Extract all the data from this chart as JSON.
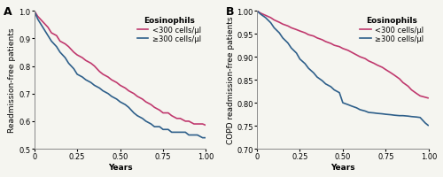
{
  "panel_A": {
    "label": "A",
    "ylabel": "Readmission-free patients",
    "xlabel": "Years",
    "ylim": [
      0.5,
      1.0
    ],
    "xlim": [
      0.0,
      1.0
    ],
    "yticks": [
      0.5,
      0.6,
      0.7,
      0.8,
      0.9,
      1.0
    ],
    "xticks": [
      0,
      0.25,
      0.5,
      0.75,
      1.0
    ],
    "legend_title": "Eosinophils",
    "legend_entries": [
      "<300 cells/µl",
      "≥300 cells/µl"
    ],
    "color_low": "#c0396e",
    "color_high": "#2e5f8a",
    "low_x": [
      0.0,
      0.02,
      0.05,
      0.08,
      0.1,
      0.13,
      0.15,
      0.18,
      0.2,
      0.23,
      0.25,
      0.28,
      0.3,
      0.33,
      0.35,
      0.38,
      0.4,
      0.43,
      0.45,
      0.48,
      0.5,
      0.53,
      0.55,
      0.58,
      0.6,
      0.63,
      0.65,
      0.68,
      0.7,
      0.73,
      0.75,
      0.78,
      0.8,
      0.83,
      0.85,
      0.88,
      0.9,
      0.93,
      0.95,
      0.98,
      1.0
    ],
    "low_y": [
      1.0,
      0.98,
      0.96,
      0.94,
      0.92,
      0.91,
      0.89,
      0.88,
      0.87,
      0.85,
      0.84,
      0.83,
      0.82,
      0.81,
      0.8,
      0.78,
      0.77,
      0.76,
      0.75,
      0.74,
      0.73,
      0.72,
      0.71,
      0.7,
      0.69,
      0.68,
      0.67,
      0.66,
      0.65,
      0.64,
      0.63,
      0.63,
      0.62,
      0.61,
      0.61,
      0.6,
      0.6,
      0.59,
      0.59,
      0.59,
      0.585
    ],
    "high_x": [
      0.0,
      0.02,
      0.05,
      0.08,
      0.1,
      0.13,
      0.15,
      0.18,
      0.2,
      0.23,
      0.25,
      0.28,
      0.3,
      0.33,
      0.35,
      0.38,
      0.4,
      0.43,
      0.45,
      0.48,
      0.5,
      0.53,
      0.55,
      0.58,
      0.6,
      0.63,
      0.65,
      0.68,
      0.7,
      0.73,
      0.75,
      0.78,
      0.8,
      0.83,
      0.85,
      0.88,
      0.9,
      0.93,
      0.95,
      0.98,
      1.0
    ],
    "high_y": [
      1.0,
      0.97,
      0.94,
      0.91,
      0.89,
      0.87,
      0.85,
      0.83,
      0.81,
      0.79,
      0.77,
      0.76,
      0.75,
      0.74,
      0.73,
      0.72,
      0.71,
      0.7,
      0.69,
      0.68,
      0.67,
      0.66,
      0.65,
      0.63,
      0.62,
      0.61,
      0.6,
      0.59,
      0.58,
      0.58,
      0.57,
      0.57,
      0.56,
      0.56,
      0.56,
      0.56,
      0.55,
      0.55,
      0.55,
      0.54,
      0.54
    ]
  },
  "panel_B": {
    "label": "B",
    "ylabel": "COPD readmission-free patients",
    "xlabel": "Years",
    "ylim": [
      0.7,
      1.0
    ],
    "xlim": [
      0.0,
      1.0
    ],
    "yticks": [
      0.7,
      0.75,
      0.8,
      0.85,
      0.9,
      0.95,
      1.0
    ],
    "xticks": [
      0,
      0.25,
      0.5,
      0.75,
      1.0
    ],
    "legend_title": "Eosinophils",
    "legend_entries": [
      "<300 cells/µl",
      "≥300 cells/µl"
    ],
    "color_low": "#c0396e",
    "color_high": "#2e5f8a",
    "low_x": [
      0.0,
      0.02,
      0.05,
      0.08,
      0.1,
      0.13,
      0.15,
      0.18,
      0.2,
      0.23,
      0.25,
      0.28,
      0.3,
      0.33,
      0.35,
      0.38,
      0.4,
      0.43,
      0.45,
      0.48,
      0.5,
      0.53,
      0.55,
      0.58,
      0.6,
      0.63,
      0.65,
      0.68,
      0.7,
      0.73,
      0.75,
      0.78,
      0.8,
      0.83,
      0.85,
      0.88,
      0.9,
      0.93,
      0.95,
      0.98,
      1.0
    ],
    "low_y": [
      1.0,
      0.995,
      0.99,
      0.985,
      0.98,
      0.975,
      0.971,
      0.967,
      0.963,
      0.959,
      0.956,
      0.952,
      0.948,
      0.945,
      0.941,
      0.937,
      0.933,
      0.929,
      0.925,
      0.922,
      0.918,
      0.914,
      0.91,
      0.904,
      0.9,
      0.896,
      0.891,
      0.886,
      0.882,
      0.877,
      0.872,
      0.865,
      0.86,
      0.852,
      0.844,
      0.836,
      0.828,
      0.82,
      0.815,
      0.812,
      0.81
    ],
    "high_x": [
      0.0,
      0.02,
      0.05,
      0.08,
      0.1,
      0.13,
      0.15,
      0.18,
      0.2,
      0.23,
      0.25,
      0.28,
      0.3,
      0.33,
      0.35,
      0.38,
      0.4,
      0.43,
      0.45,
      0.48,
      0.5,
      0.53,
      0.55,
      0.58,
      0.6,
      0.63,
      0.65,
      0.68,
      0.7,
      0.73,
      0.75,
      0.78,
      0.8,
      0.83,
      0.85,
      0.88,
      0.9,
      0.93,
      0.95,
      0.98,
      1.0
    ],
    "high_y": [
      1.0,
      0.993,
      0.985,
      0.974,
      0.963,
      0.952,
      0.941,
      0.93,
      0.919,
      0.908,
      0.895,
      0.885,
      0.875,
      0.865,
      0.856,
      0.848,
      0.841,
      0.835,
      0.828,
      0.822,
      0.8,
      0.796,
      0.793,
      0.789,
      0.785,
      0.782,
      0.779,
      0.778,
      0.777,
      0.776,
      0.775,
      0.774,
      0.773,
      0.772,
      0.772,
      0.771,
      0.77,
      0.769,
      0.768,
      0.756,
      0.75
    ]
  },
  "background_color": "#f5f5f0",
  "linewidth": 1.2,
  "fontsize_label": 6.5,
  "fontsize_tick": 6,
  "fontsize_legend_title": 6.5,
  "fontsize_legend": 6,
  "fontsize_panel_label": 9
}
